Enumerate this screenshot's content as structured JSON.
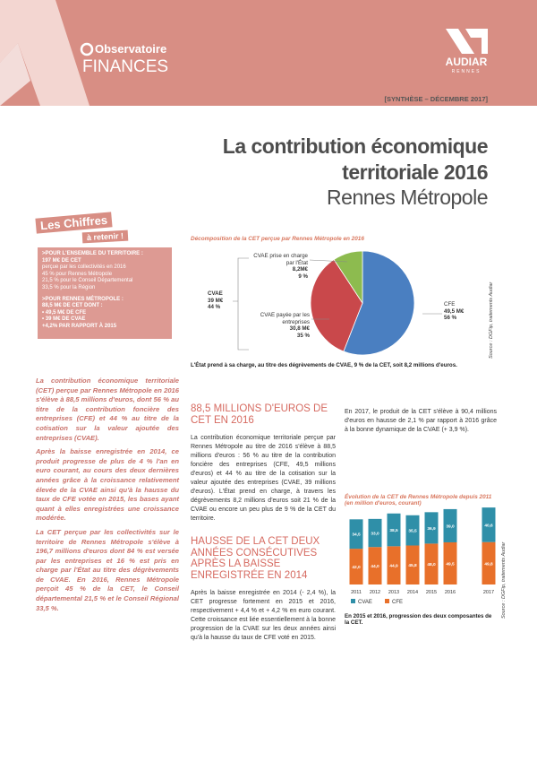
{
  "header": {
    "brand_top": "Observatoire",
    "brand_bottom": "FINANCES",
    "logo": "AUDIAR",
    "logo_sub": "RENNES",
    "edition": "[SYNTHÈSE – DÉCEMBRE 2017]"
  },
  "title": {
    "line1": "La contribution économique",
    "line2": "territoriale 2016",
    "subtitle": "Rennes Métropole"
  },
  "key_figures": {
    "tag1": "Les Chiffres",
    "tag2": "à retenir !",
    "groups": [
      {
        "lines": [
          ">POUR L'ENSEMBLE DU TERRITOIRE :",
          "197 M€ DE CET",
          "perçue par les collectivités en 2016",
          "45 % pour Rennes Métropole",
          "21,5 % pour le Conseil Départemental",
          "33,5 % pour la Région"
        ]
      },
      {
        "lines": [
          ">POUR RENNES MÉTROPOLE :",
          "88,5 M€ DE CET DONT :",
          "• 49,5 M€ DE CFE",
          "• 39 M€ DE CVAE",
          "+4,2% PAR RAPPORT À 2015"
        ]
      }
    ]
  },
  "intro": [
    "La contribution économique territoriale (CET) perçue par Rennes Métropole en 2016 s'élève à 88,5 millions d'euros, dont 56 % au titre de la contribution foncière des entreprises (CFE) et 44 % au titre de la cotisation sur la valeur ajoutée des entreprises (CVAE).",
    "Après la baisse enregistrée en 2014, ce produit progresse de plus de 4 % l'an en euro courant, au cours des deux dernières années grâce à la croissance relativement élevée de la CVAE ainsi qu'à la hausse du taux de CFE votée en 2015, les bases ayant quant à elles enregistrées une croissance modérée.",
    "La CET perçue par les collectivités sur le territoire de Rennes Métropole s'élève à 196,7 millions d'euros dont 84 % est versée par les entreprises et 16 % est pris en charge par l'État au titre des dégrèvements de CVAE. En 2016, Rennes Métropole perçoit 45 % de la CET, le Conseil départemental 21,5 % et le Conseil Régional 33,5 %."
  ],
  "sections": [
    {
      "heading": "88,5 MILLIONS D'EUROS DE CET EN 2016",
      "text": "La contribution économique territoriale perçue par Rennes Métropole au titre de 2016 s'élève à 88,5 millions d'euros : 56 % au titre de la contribution foncière des entreprises (CFE, 49,5 millions d'euros) et 44 % au titre de la cotisation sur la valeur ajoutée des entreprises (CVAE, 39 millions d'euros). L'État prend en charge, à travers les dégrèvements 8,2 millions d'euros soit 21 % de la CVAE ou encore un peu plus de 9 % de la CET du territoire."
    },
    {
      "heading": "HAUSSE DE LA CET DEUX ANNÉES CONSÉCUTIVES APRÈS LA BAISSE ENREGISTRÉE EN 2014",
      "text": "Après la baisse enregistrée en 2014 (- 2,4 %), la CET progresse fortement en 2015 et 2016, respectivement + 4,4 % et + 4,2 % en euro courant. Cette croissance est liée essentiellement à la bonne progression de la CVAE sur les deux années ainsi qu'à la hausse du taux de CFE voté en 2015."
    }
  ],
  "right_text": "En 2017, le produit de la CET s'élève à 90,4 millions d'euros en hausse de 2,1 % par rapport à 2016 grâce à la bonne dynamique de la CVAE (+ 3,9 %).",
  "chart_data": [
    {
      "type": "pie",
      "title": "Décomposition de la CET perçue par Rennes Métropole en 2016",
      "categories": [
        "CFE",
        "CVAE payée par les entreprises",
        "CVAE prise en charge par l'État"
      ],
      "values": [
        49.5,
        30.8,
        8.2
      ],
      "value_labels": [
        "49,5 M€",
        "30,8 M€",
        "8,2M€"
      ],
      "percent_labels": [
        "56 %",
        "35 %",
        "9 %"
      ],
      "colors": [
        "#4a7fc1",
        "#c9484b",
        "#8dbb4f"
      ],
      "group_label": {
        "name": "CVAE",
        "value": "39 M€",
        "percent": "44 %"
      },
      "source": "Source : DGFip, traitements Audiar",
      "caption": "L'État prend à sa charge, au titre des dégrèvements de CVAE, 9 % de la CET, soit 8,2 millions d'euros."
    },
    {
      "type": "bar",
      "stacked": true,
      "title": "Évolution de la CET de Rennes Métropole depuis 2011 (en million d'euros, courant)",
      "categories": [
        "2011",
        "2012",
        "2013",
        "2014",
        "2015",
        "2016",
        "2017"
      ],
      "series": [
        {
          "name": "CFE",
          "color": "#e8702a",
          "values": [
            42.0,
            44.0,
            44.9,
            45.8,
            48.0,
            49.5,
            49.8
          ],
          "value_labels": [
            "42,0",
            "44,0",
            "44,9",
            "45,8",
            "48,0",
            "49,5",
            "49,8"
          ]
        },
        {
          "name": "CVAE",
          "color": "#2f8fa8",
          "values": [
            34.5,
            33.0,
            38.5,
            35.5,
            36.9,
            39.0,
            40.6
          ],
          "value_labels": [
            "34,5",
            "33,0",
            "38,5",
            "35,5",
            "36,9",
            "39,0",
            "40,6"
          ]
        }
      ],
      "legend": "bottom",
      "source": "Source : DGFip, traitements Audiar",
      "caption": "En 2015 et 2016, progression des deux composantes de la CET."
    }
  ]
}
